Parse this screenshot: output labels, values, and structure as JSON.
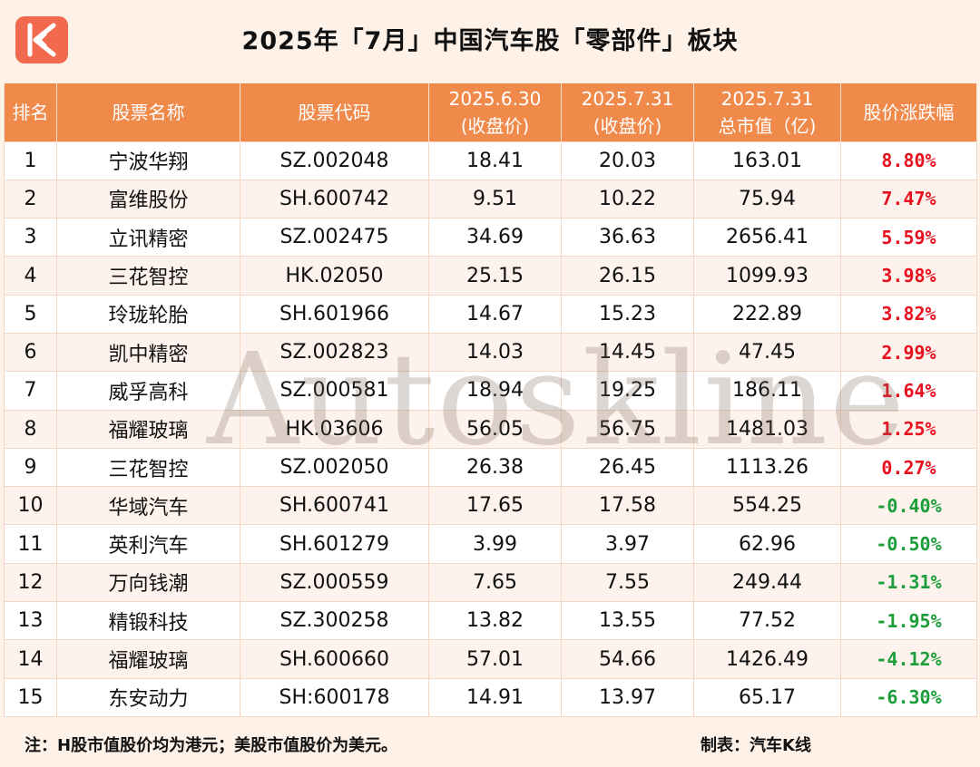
{
  "title": "2025年「7月」中国汽车股「零部件」板块",
  "headers": {
    "rank": "排名",
    "name": "股票名称",
    "code": "股票代码",
    "close_0630_line1": "2025.6.30",
    "close_0630_line2": "(收盘价)",
    "close_0731_line1": "2025.7.31",
    "close_0731_line2": "(收盘价)",
    "mcap_line1": "2025.7.31",
    "mcap_line2": "总市值（亿)",
    "change": "股价涨跌幅"
  },
  "rows": [
    {
      "rank": "1",
      "name": "宁波华翔",
      "code": "SZ.002048",
      "close_0630": "18.41",
      "close_0731": "20.03",
      "mcap": "163.01",
      "change": "8.80%",
      "dir": "up"
    },
    {
      "rank": "2",
      "name": "富维股份",
      "code": "SH.600742",
      "close_0630": "9.51",
      "close_0731": "10.22",
      "mcap": "75.94",
      "change": "7.47%",
      "dir": "up"
    },
    {
      "rank": "3",
      "name": "立讯精密",
      "code": "SZ.002475",
      "close_0630": "34.69",
      "close_0731": "36.63",
      "mcap": "2656.41",
      "change": "5.59%",
      "dir": "up"
    },
    {
      "rank": "4",
      "name": "三花智控",
      "code": "HK.02050",
      "close_0630": "25.15",
      "close_0731": "26.15",
      "mcap": "1099.93",
      "change": "3.98%",
      "dir": "up"
    },
    {
      "rank": "5",
      "name": "玲珑轮胎",
      "code": "SH.601966",
      "close_0630": "14.67",
      "close_0731": "15.23",
      "mcap": "222.89",
      "change": "3.82%",
      "dir": "up"
    },
    {
      "rank": "6",
      "name": "凯中精密",
      "code": "SZ.002823",
      "close_0630": "14.03",
      "close_0731": "14.45",
      "mcap": "47.45",
      "change": "2.99%",
      "dir": "up"
    },
    {
      "rank": "7",
      "name": "威孚高科",
      "code": "SZ.000581",
      "close_0630": "18.94",
      "close_0731": "19.25",
      "mcap": "186.11",
      "change": "1.64%",
      "dir": "up"
    },
    {
      "rank": "8",
      "name": "福耀玻璃",
      "code": "HK.03606",
      "close_0630": "56.05",
      "close_0731": "56.75",
      "mcap": "1481.03",
      "change": "1.25%",
      "dir": "up"
    },
    {
      "rank": "9",
      "name": "三花智控",
      "code": "SZ.002050",
      "close_0630": "26.38",
      "close_0731": "26.45",
      "mcap": "1113.26",
      "change": "0.27%",
      "dir": "up"
    },
    {
      "rank": "10",
      "name": "华域汽车",
      "code": "SH.600741",
      "close_0630": "17.65",
      "close_0731": "17.58",
      "mcap": "554.25",
      "change": "-0.40%",
      "dir": "down"
    },
    {
      "rank": "11",
      "name": "英利汽车",
      "code": "SH.601279",
      "close_0630": "3.99",
      "close_0731": "3.97",
      "mcap": "62.96",
      "change": "-0.50%",
      "dir": "down"
    },
    {
      "rank": "12",
      "name": "万向钱潮",
      "code": "SZ.000559",
      "close_0630": "7.65",
      "close_0731": "7.55",
      "mcap": "249.44",
      "change": "-1.31%",
      "dir": "down"
    },
    {
      "rank": "13",
      "name": "精锻科技",
      "code": "SZ.300258",
      "close_0630": "13.82",
      "close_0731": "13.55",
      "mcap": "77.52",
      "change": "-1.95%",
      "dir": "down"
    },
    {
      "rank": "14",
      "name": "福耀玻璃",
      "code": "SH.600660",
      "close_0630": "57.01",
      "close_0731": "54.66",
      "mcap": "1426.49",
      "change": "-4.12%",
      "dir": "down"
    },
    {
      "rank": "15",
      "name": "东安动力",
      "code": "SH:600178",
      "close_0630": "14.91",
      "close_0731": "13.97",
      "mcap": "65.17",
      "change": "-6.30%",
      "dir": "down"
    }
  ],
  "watermark": "Autoskline",
  "footer": {
    "note": "注：H股市值股价均为港元；美股市值股价为美元。",
    "credit": "制表：汽车K线"
  },
  "colors": {
    "header_bg": "#f08a4b",
    "logo_bg": "#f26a4e",
    "up": "#e8101e",
    "down": "#1b9e3a",
    "page_bg": "#fdf1e8"
  },
  "logo_icon": "k-line-logo-icon"
}
